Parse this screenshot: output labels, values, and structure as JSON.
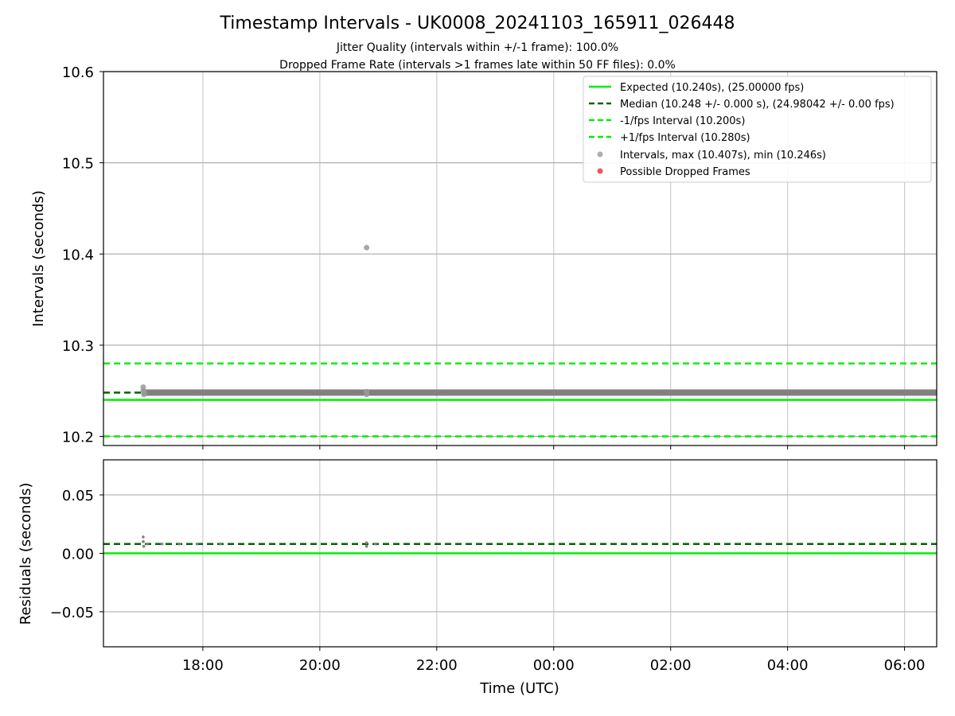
{
  "chart_data": [
    {
      "type": "scatter",
      "title": "Timestamp Intervals - UK0008_20241103_165911_026448",
      "subtitle_lines": [
        "Jitter Quality (intervals within +/-1 frame): 100.0%",
        "Dropped Frame Rate (intervals >1 frames late within 50 FF files): 0.0%"
      ],
      "xlabel": "",
      "ylabel": "Intervals (seconds)",
      "xlim_hours": [
        16.3,
        30.55
      ],
      "ylim": [
        10.19,
        10.6
      ],
      "yticks": [
        10.2,
        10.3,
        10.4,
        10.5,
        10.6
      ],
      "ytick_labels": [
        "10.2",
        "10.3",
        "10.4",
        "10.5",
        "10.6"
      ],
      "grid": true,
      "legend_position": "top-right",
      "reference_lines": [
        {
          "name": "Expected (10.240s), (25.00000 fps)",
          "y": 10.24,
          "color": "#00ee00",
          "style": "solid"
        },
        {
          "name": "Median (10.248 +/- 0.000 s), (24.98042 +/- 0.00 fps)",
          "y": 10.248,
          "color": "#006400",
          "style": "dashed"
        },
        {
          "name": "-1/fps Interval (10.200s)",
          "y": 10.2,
          "color": "#00ee00",
          "style": "dashed"
        },
        {
          "name": "+1/fps Interval (10.280s)",
          "y": 10.28,
          "color": "#00ee00",
          "style": "dashed"
        }
      ],
      "series": [
        {
          "name": "Intervals, max (10.407s), min (10.246s)",
          "color": "#999999",
          "band": {
            "x_start_hours": 16.97,
            "x_end_hours": 30.55,
            "y": 10.248
          },
          "points": [
            {
              "x_hours": 16.98,
              "y": 10.254
            },
            {
              "x_hours": 16.98,
              "y": 10.25
            },
            {
              "x_hours": 16.99,
              "y": 10.246
            },
            {
              "x_hours": 17.0,
              "y": 10.248
            },
            {
              "x_hours": 20.8,
              "y": 10.407
            },
            {
              "x_hours": 20.8,
              "y": 10.249
            },
            {
              "x_hours": 20.8,
              "y": 10.246
            }
          ]
        },
        {
          "name": "Possible Dropped Frames",
          "color": "#ee5555",
          "points": []
        }
      ]
    },
    {
      "type": "scatter",
      "xlabel": "Time (UTC)",
      "ylabel": "Residuals (seconds)",
      "xlim_hours": [
        16.3,
        30.55
      ],
      "ylim": [
        -0.08,
        0.08
      ],
      "yticks": [
        -0.05,
        0.0,
        0.05
      ],
      "ytick_labels": [
        "−0.05",
        "0.00",
        "0.05"
      ],
      "xticks_hours": [
        18,
        20,
        22,
        24,
        26,
        28,
        30
      ],
      "xtick_labels": [
        "18:00",
        "20:00",
        "22:00",
        "00:00",
        "02:00",
        "04:00",
        "06:00"
      ],
      "grid": true,
      "reference_lines": [
        {
          "name": "zero",
          "y": 0.0,
          "color": "#00ee00",
          "style": "solid"
        },
        {
          "name": "median residual",
          "y": 0.008,
          "color": "#006400",
          "style": "dashed"
        }
      ],
      "series": [
        {
          "name": "Residuals",
          "color": "#808080",
          "points": [
            {
              "x_hours": 16.98,
              "y": 0.014
            },
            {
              "x_hours": 16.98,
              "y": 0.01
            },
            {
              "x_hours": 16.99,
              "y": 0.006
            },
            {
              "x_hours": 17.05,
              "y": 0.008
            },
            {
              "x_hours": 17.3,
              "y": 0.008
            },
            {
              "x_hours": 17.6,
              "y": 0.008
            },
            {
              "x_hours": 17.9,
              "y": 0.008
            },
            {
              "x_hours": 18.3,
              "y": 0.008
            },
            {
              "x_hours": 20.8,
              "y": 0.009
            },
            {
              "x_hours": 20.8,
              "y": 0.006
            },
            {
              "x_hours": 20.95,
              "y": 0.008
            }
          ]
        }
      ]
    }
  ]
}
